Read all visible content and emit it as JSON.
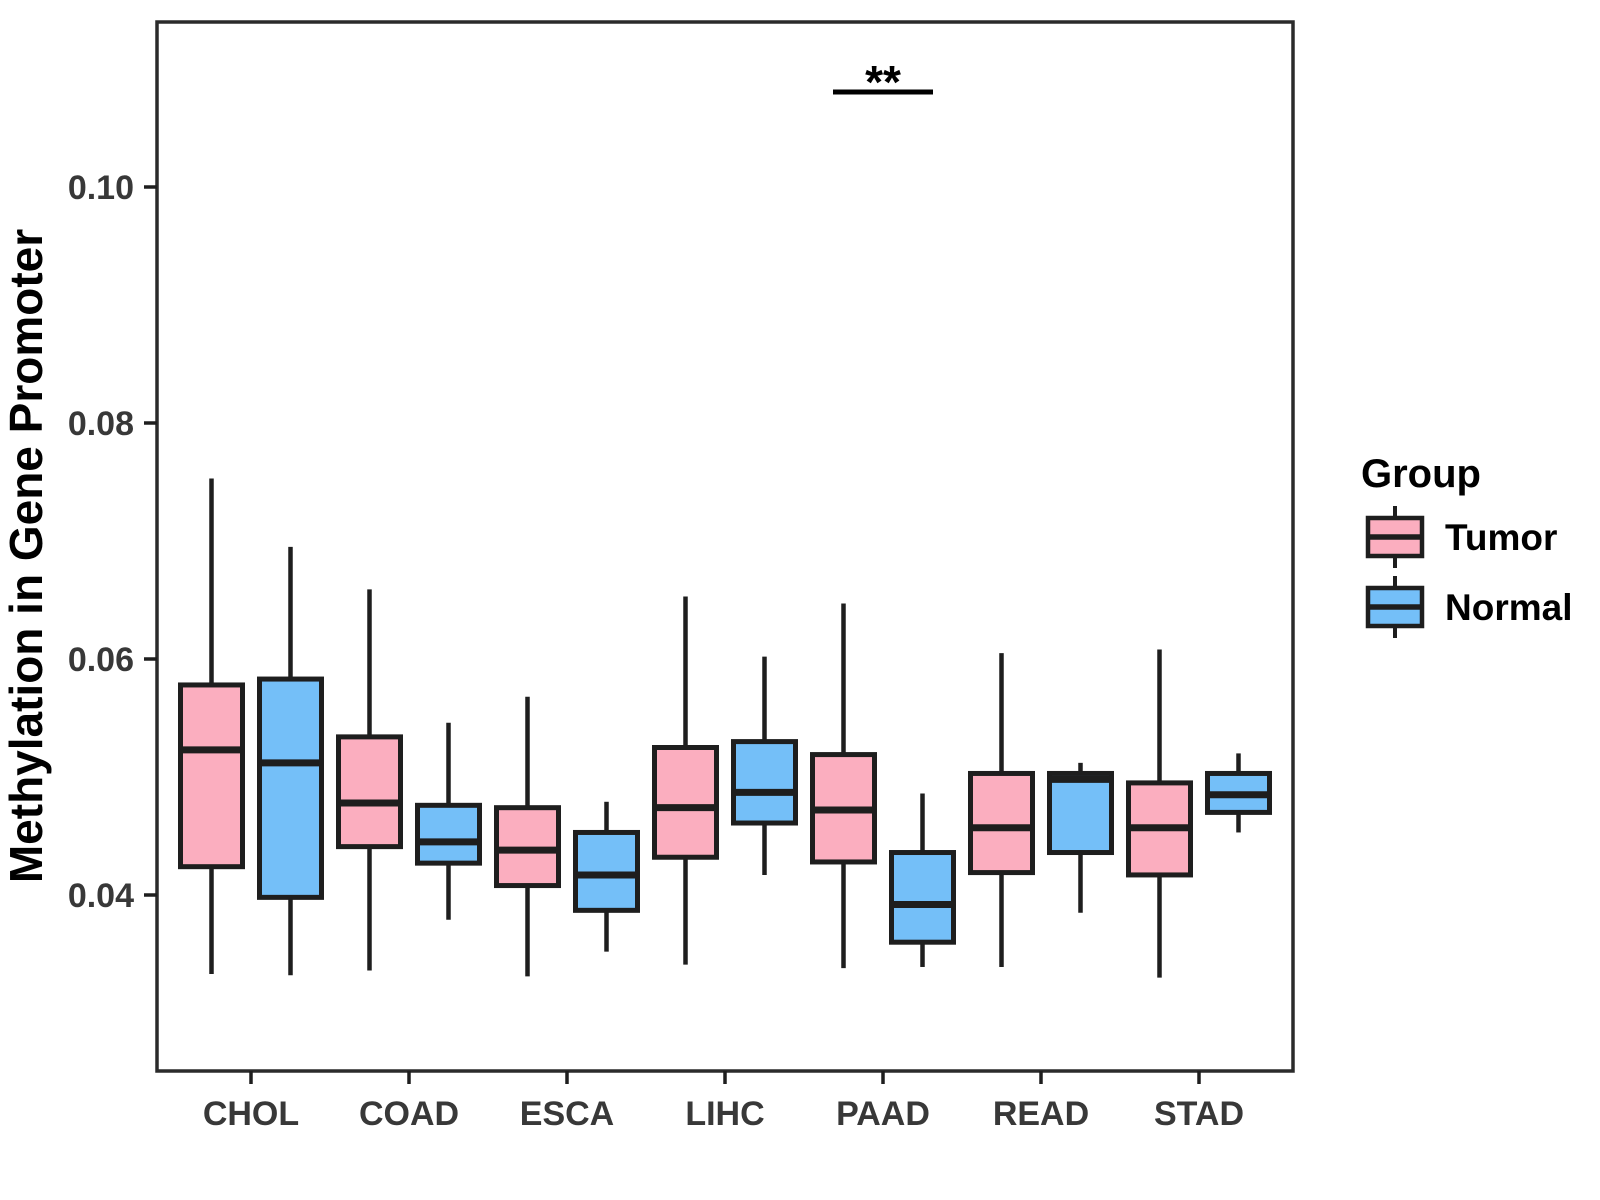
{
  "figure": {
    "background_color": "#FFFFFF",
    "panel_border_color": "#2B2B2B"
  },
  "chart_data": {
    "type": "boxplot",
    "title": "",
    "xlabel": "",
    "ylabel": "Methylation in Gene Promoter",
    "grid": false,
    "panel_border": true,
    "legend_position": "right",
    "ylim": [
      0.025,
      0.114
    ],
    "categories": [
      "CHOL",
      "COAD",
      "ESCA",
      "LIHC",
      "PAAD",
      "READ",
      "STAD"
    ],
    "yticks": [
      {
        "value": 0.04,
        "label": "0.04"
      },
      {
        "value": 0.06,
        "label": "0.06"
      },
      {
        "value": 0.08,
        "label": "0.08"
      },
      {
        "value": 0.1,
        "label": "0.10"
      }
    ],
    "series": [
      {
        "name": "Tumor",
        "color": "#FBAEBF",
        "boxes": [
          {
            "category": "CHOL",
            "lo": 0.0333,
            "q1": 0.0424,
            "med": 0.0523,
            "q3": 0.0578,
            "hi": 0.0753
          },
          {
            "category": "COAD",
            "lo": 0.0336,
            "q1": 0.0441,
            "med": 0.0478,
            "q3": 0.0534,
            "hi": 0.0659
          },
          {
            "category": "ESCA",
            "lo": 0.0331,
            "q1": 0.0408,
            "med": 0.0438,
            "q3": 0.0474,
            "hi": 0.0568
          },
          {
            "category": "LIHC",
            "lo": 0.0341,
            "q1": 0.0432,
            "med": 0.0474,
            "q3": 0.0525,
            "hi": 0.0653
          },
          {
            "category": "PAAD",
            "lo": 0.0338,
            "q1": 0.0428,
            "med": 0.0472,
            "q3": 0.0519,
            "hi": 0.0647
          },
          {
            "category": "READ",
            "lo": 0.0339,
            "q1": 0.0419,
            "med": 0.0457,
            "q3": 0.0503,
            "hi": 0.0605
          },
          {
            "category": "STAD",
            "lo": 0.033,
            "q1": 0.0417,
            "med": 0.0457,
            "q3": 0.0495,
            "hi": 0.0608
          }
        ]
      },
      {
        "name": "Normal",
        "color": "#74BFF8",
        "boxes": [
          {
            "category": "CHOL",
            "lo": 0.0332,
            "q1": 0.0398,
            "med": 0.0512,
            "q3": 0.0583,
            "hi": 0.0695
          },
          {
            "category": "COAD",
            "lo": 0.0379,
            "q1": 0.0427,
            "med": 0.0445,
            "q3": 0.0476,
            "hi": 0.0546
          },
          {
            "category": "ESCA",
            "lo": 0.0352,
            "q1": 0.0387,
            "med": 0.0417,
            "q3": 0.0453,
            "hi": 0.0479
          },
          {
            "category": "LIHC",
            "lo": 0.0417,
            "q1": 0.0461,
            "med": 0.0487,
            "q3": 0.053,
            "hi": 0.0602
          },
          {
            "category": "PAAD",
            "lo": 0.0339,
            "q1": 0.036,
            "med": 0.0392,
            "q3": 0.0436,
            "hi": 0.0486
          },
          {
            "category": "READ",
            "lo": 0.0385,
            "q1": 0.0436,
            "med": 0.0498,
            "q3": 0.0503,
            "hi": 0.0512
          },
          {
            "category": "STAD",
            "lo": 0.0453,
            "q1": 0.047,
            "med": 0.0485,
            "q3": 0.0503,
            "hi": 0.052
          }
        ]
      }
    ],
    "annotations": [
      {
        "type": "significance",
        "label": "**",
        "category": "PAAD"
      }
    ],
    "legend": {
      "title": "Group",
      "entries": [
        {
          "label": "Tumor",
          "color": "#FBAEBF"
        },
        {
          "label": "Normal",
          "color": "#74BFF8"
        }
      ]
    }
  }
}
